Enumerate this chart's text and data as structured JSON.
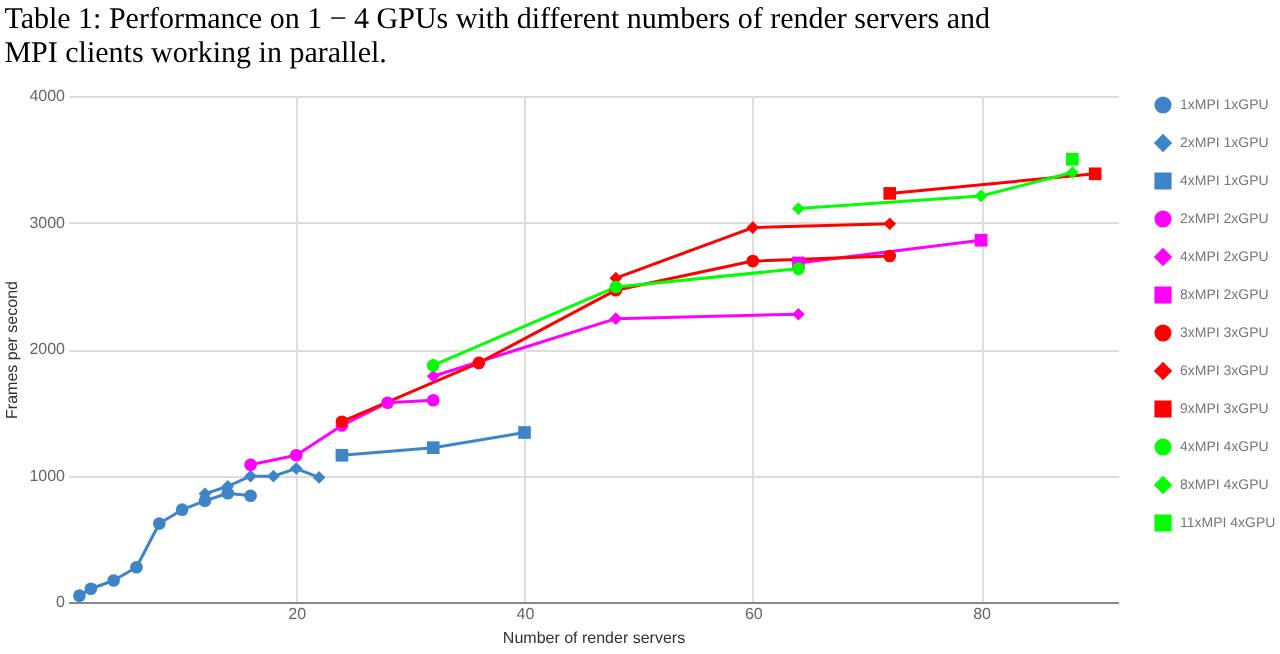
{
  "chart_data": {
    "type": "line",
    "title": [
      "Table 1: Performance on 1 − 4 GPUs with different numbers of render servers and",
      "MPI clients working in parallel."
    ],
    "xlabel": "Number of render servers",
    "ylabel": "Frames per second",
    "xlim": [
      0,
      92
    ],
    "xticks": [
      20,
      40,
      60,
      80
    ],
    "ylim": [
      0,
      4000
    ],
    "yticks": [
      0,
      1000,
      2000,
      3000,
      4000
    ],
    "grid": true,
    "legend": "right",
    "line_style": "solid",
    "series": [
      {
        "name": "1xMPI 1xGPU",
        "color": "#3d85c6",
        "marker": "circle",
        "x": [
          1,
          2,
          4,
          6,
          8,
          10,
          12,
          14,
          16
        ],
        "values": [
          50,
          105,
          170,
          275,
          620,
          730,
          800,
          860,
          840
        ]
      },
      {
        "name": "2xMPI 1xGPU",
        "color": "#3d85c6",
        "marker": "diamond",
        "x": [
          12,
          14,
          16,
          18,
          20,
          22
        ],
        "values": [
          855,
          915,
          995,
          995,
          1055,
          985
        ]
      },
      {
        "name": "4xMPI 1xGPU",
        "color": "#3d85c6",
        "marker": "square",
        "x": [
          24,
          32,
          40
        ],
        "values": [
          1160,
          1220,
          1340
        ]
      },
      {
        "name": "2xMPI 2xGPU",
        "color": "#ff00ff",
        "marker": "circle",
        "x": [
          16,
          20,
          24,
          28,
          32
        ],
        "values": [
          1085,
          1160,
          1395,
          1575,
          1595
        ]
      },
      {
        "name": "4xMPI 2xGPU",
        "color": "#ff00ff",
        "marker": "diamond",
        "x": [
          32,
          48,
          64
        ],
        "values": [
          1785,
          2240,
          2275
        ]
      },
      {
        "name": "8xMPI 2xGPU",
        "color": "#ff00ff",
        "marker": "square",
        "x": [
          64,
          80
        ],
        "values": [
          2680,
          2860
        ]
      },
      {
        "name": "3xMPI 3xGPU",
        "color": "#ff0000",
        "marker": "circle",
        "x": [
          24,
          36,
          48,
          60,
          72
        ],
        "values": [
          1425,
          1890,
          2465,
          2695,
          2735
        ]
      },
      {
        "name": "6xMPI 3xGPU",
        "color": "#ff0000",
        "marker": "diamond",
        "x": [
          48,
          60,
          72
        ],
        "values": [
          2560,
          2960,
          2990
        ]
      },
      {
        "name": "9xMPI 3xGPU",
        "color": "#ff0000",
        "marker": "square",
        "x": [
          72,
          90
        ],
        "values": [
          3230,
          3385
        ]
      },
      {
        "name": "4xMPI 4xGPU",
        "color": "#00ff00",
        "marker": "circle",
        "x": [
          32,
          48,
          64
        ],
        "values": [
          1870,
          2490,
          2635
        ]
      },
      {
        "name": "8xMPI 4xGPU",
        "color": "#00ff00",
        "marker": "diamond",
        "x": [
          64,
          80,
          88
        ],
        "values": [
          3110,
          3210,
          3395
        ]
      },
      {
        "name": "11xMPI 4xGPU",
        "color": "#00ff00",
        "marker": "square",
        "x": [
          88
        ],
        "values": [
          3500
        ]
      }
    ]
  }
}
